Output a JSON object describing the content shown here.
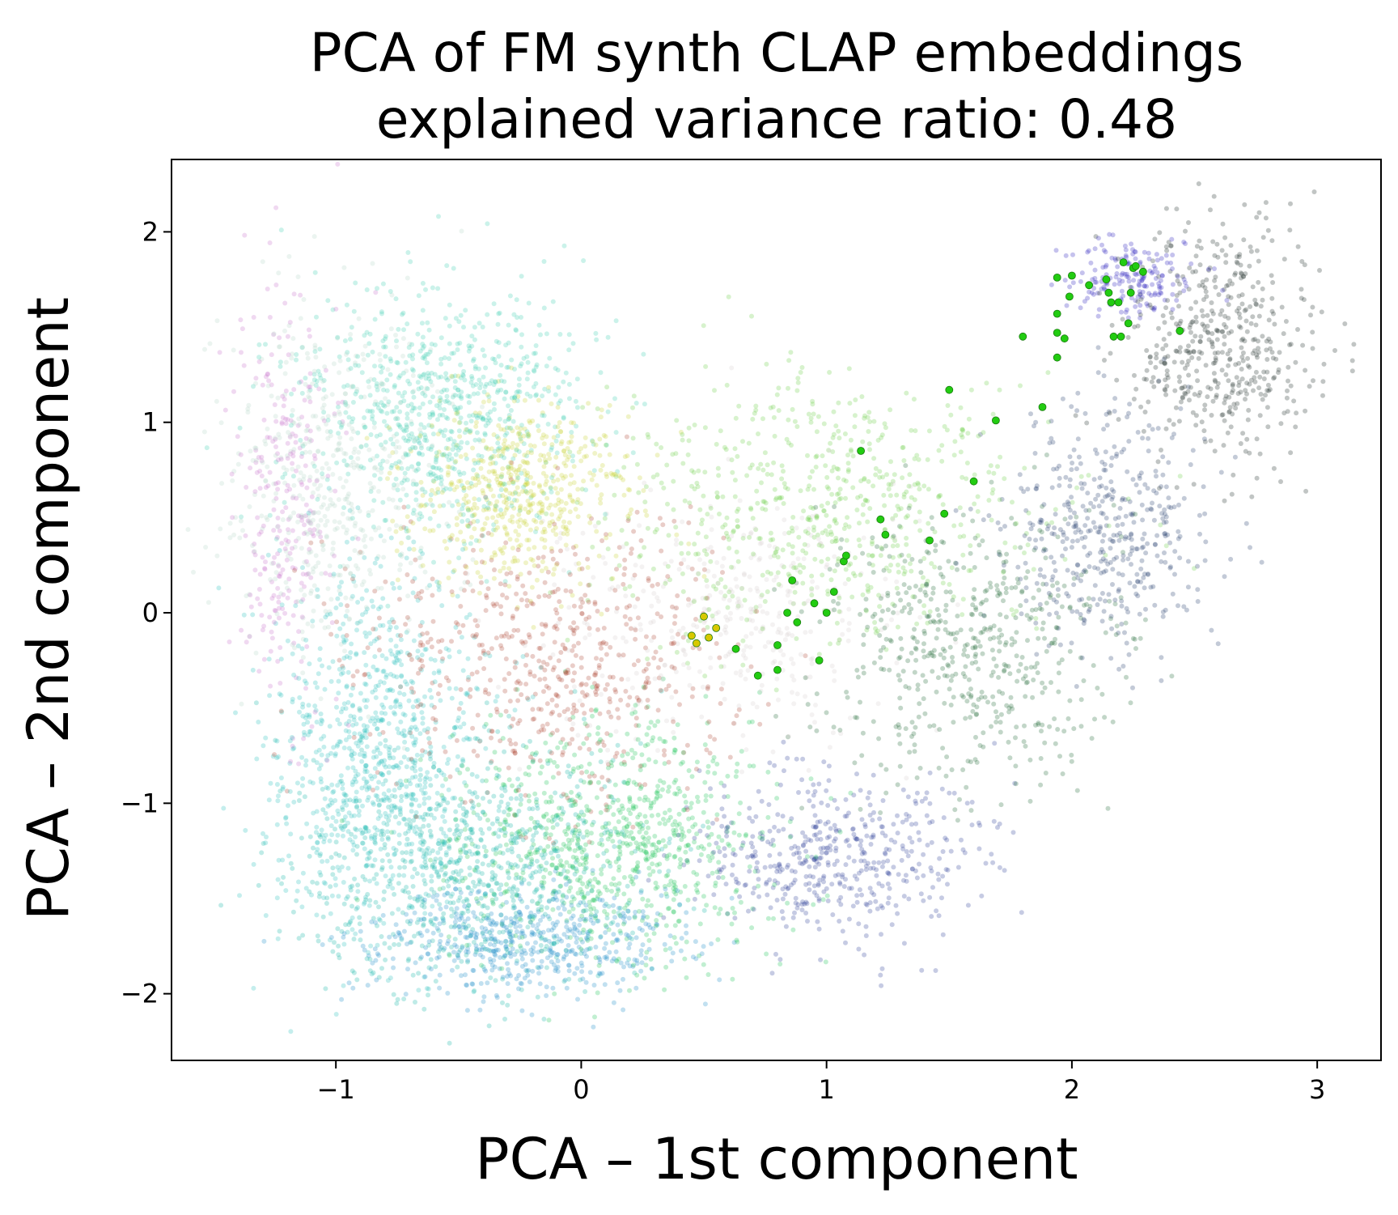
{
  "chart_data": {
    "type": "scatter",
    "title": "PCA of FM synth CLAP embeddings",
    "subtitle": "explained variance ratio: 0.48",
    "xlabel": "PCA – 1st component",
    "ylabel": "PCA – 2nd component",
    "xlim": [
      -1.67,
      3.26
    ],
    "ylim": [
      -2.35,
      2.38
    ],
    "x_ticks": [
      -1,
      0,
      1,
      2,
      3
    ],
    "x_tick_labels": [
      "−1",
      "0",
      "1",
      "2",
      "3"
    ],
    "y_ticks": [
      -2,
      -1,
      0,
      1,
      2
    ],
    "y_tick_labels": [
      "−2",
      "−1",
      "0",
      "1",
      "2"
    ],
    "grid": false,
    "legend": "none",
    "point_alpha": 0.28,
    "cloud_regions": [
      {
        "name": "",
        "color": "#b7d9c9",
        "cx": -1.0,
        "cy": 0.72,
        "sx": 0.22,
        "sy": 0.45,
        "weight": 0.05
      },
      {
        "name": "",
        "color": "#c978cc",
        "cx": -1.2,
        "cy": 0.55,
        "sx": 0.1,
        "sy": 0.55,
        "weight": 0.03
      },
      {
        "name": "",
        "color": "#46d0b5",
        "cx": -0.55,
        "cy": 1.05,
        "sx": 0.3,
        "sy": 0.33,
        "weight": 0.08
      },
      {
        "name": "",
        "color": "#c8d43a",
        "cx": -0.25,
        "cy": 0.65,
        "sx": 0.22,
        "sy": 0.25,
        "weight": 0.06
      },
      {
        "name": "",
        "color": "#b04a3a",
        "cx": -0.1,
        "cy": -0.25,
        "sx": 0.38,
        "sy": 0.38,
        "weight": 0.07
      },
      {
        "name": "",
        "color": "#2fc2c0",
        "cx": -0.85,
        "cy": -0.75,
        "sx": 0.22,
        "sy": 0.48,
        "weight": 0.09
      },
      {
        "name": "",
        "color": "#18b8a8",
        "cx": -0.45,
        "cy": -1.35,
        "sx": 0.35,
        "sy": 0.32,
        "weight": 0.09
      },
      {
        "name": "",
        "color": "#1f8fc8",
        "cx": -0.2,
        "cy": -1.72,
        "sx": 0.32,
        "sy": 0.14,
        "weight": 0.05
      },
      {
        "name": "",
        "color": "#1fc45a",
        "cx": 0.15,
        "cy": -1.2,
        "sx": 0.32,
        "sy": 0.32,
        "weight": 0.09
      },
      {
        "name": "",
        "color": "#6ed04a",
        "cx": 1.0,
        "cy": 0.55,
        "sx": 0.45,
        "sy": 0.35,
        "weight": 0.07
      },
      {
        "name": "",
        "color": "#d7d0d0",
        "cx": 0.6,
        "cy": -0.05,
        "sx": 0.35,
        "sy": 0.35,
        "weight": 0.04
      },
      {
        "name": "",
        "color": "#32469a",
        "cx": 1.05,
        "cy": -1.3,
        "sx": 0.3,
        "sy": 0.22,
        "weight": 0.05
      },
      {
        "name": "",
        "color": "#236a3a",
        "cx": 1.6,
        "cy": -0.2,
        "sx": 0.3,
        "sy": 0.35,
        "weight": 0.06
      },
      {
        "name": "",
        "color": "#29406e",
        "cx": 2.15,
        "cy": 0.45,
        "sx": 0.22,
        "sy": 0.3,
        "weight": 0.05
      },
      {
        "name": "",
        "color": "#1f2f2a",
        "cx": 2.6,
        "cy": 1.4,
        "sx": 0.2,
        "sy": 0.32,
        "weight": 0.05
      },
      {
        "name": "",
        "color": "#2f25c0",
        "cx": 2.25,
        "cy": 1.75,
        "sx": 0.13,
        "sy": 0.1,
        "weight": 0.02
      }
    ],
    "trajectory_color": "#22cc11",
    "trajectory_start_color": "#d8c800",
    "trajectory_points": [
      [
        0.45,
        -0.12
      ],
      [
        0.47,
        -0.16
      ],
      [
        0.52,
        -0.13
      ],
      [
        0.55,
        -0.08
      ],
      [
        0.5,
        -0.02
      ],
      [
        0.63,
        -0.19
      ],
      [
        0.72,
        -0.33
      ],
      [
        0.8,
        -0.3
      ],
      [
        0.8,
        -0.17
      ],
      [
        0.84,
        0.0
      ],
      [
        0.86,
        0.17
      ],
      [
        0.88,
        -0.05
      ],
      [
        0.95,
        0.05
      ],
      [
        0.97,
        -0.25
      ],
      [
        1.0,
        0.0
      ],
      [
        1.03,
        0.11
      ],
      [
        1.07,
        0.27
      ],
      [
        1.08,
        0.3
      ],
      [
        1.14,
        0.85
      ],
      [
        1.22,
        0.49
      ],
      [
        1.24,
        0.41
      ],
      [
        1.42,
        0.38
      ],
      [
        1.48,
        0.52
      ],
      [
        1.5,
        1.17
      ],
      [
        1.6,
        0.69
      ],
      [
        1.69,
        1.01
      ],
      [
        1.8,
        1.45
      ],
      [
        1.88,
        1.08
      ],
      [
        1.94,
        1.34
      ],
      [
        1.94,
        1.47
      ],
      [
        1.94,
        1.57
      ],
      [
        1.94,
        1.76
      ],
      [
        1.97,
        1.44
      ],
      [
        1.99,
        1.66
      ],
      [
        2.0,
        1.77
      ],
      [
        2.07,
        1.72
      ],
      [
        2.14,
        1.75
      ],
      [
        2.15,
        1.68
      ],
      [
        2.16,
        1.63
      ],
      [
        2.17,
        1.45
      ],
      [
        2.19,
        1.63
      ],
      [
        2.2,
        1.45
      ],
      [
        2.21,
        1.84
      ],
      [
        2.23,
        1.52
      ],
      [
        2.24,
        1.68
      ],
      [
        2.25,
        1.81
      ],
      [
        2.26,
        1.82
      ],
      [
        2.29,
        1.79
      ],
      [
        2.44,
        1.48
      ]
    ]
  }
}
